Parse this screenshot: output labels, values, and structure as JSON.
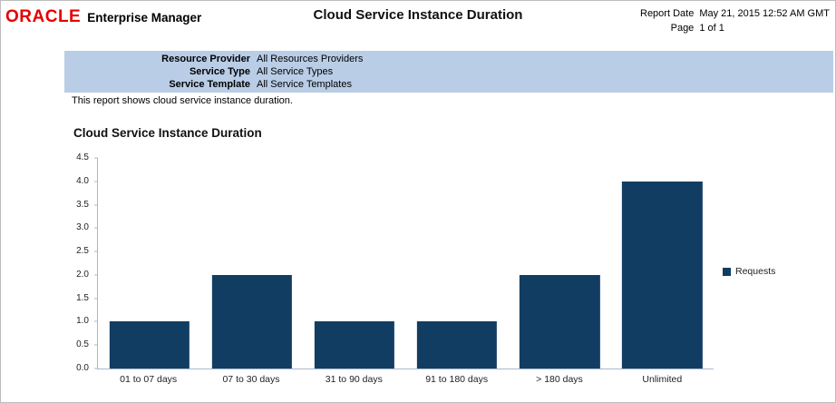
{
  "header": {
    "logo": "ORACLE",
    "product_name": "Enterprise Manager",
    "report_title": "Cloud Service Instance Duration",
    "report_date_label": "Report Date",
    "report_date_value": "May 21, 2015 12:52 AM GMT",
    "page_label": "Page",
    "page_value": "1 of 1"
  },
  "parameters": [
    {
      "label": "Resource Provider",
      "value": "All Resources Providers"
    },
    {
      "label": "Service Type",
      "value": "All Service Types"
    },
    {
      "label": "Service Template",
      "value": "All Service Templates"
    }
  ],
  "description": "This report shows cloud service instance duration.",
  "chart_section_title": "Cloud Service Instance Duration",
  "chart_data": {
    "type": "bar",
    "title": "Cloud Service Instance Duration",
    "categories": [
      "01 to 07 days",
      "07 to 30 days",
      "31 to 90 days",
      "91 to 180 days",
      "> 180 days",
      "Unlimited"
    ],
    "series": [
      {
        "name": "Requests",
        "values": [
          1,
          2,
          1,
          1,
          2,
          4
        ]
      }
    ],
    "xlabel": "",
    "ylabel": "",
    "ylim": [
      0,
      4.5
    ],
    "ytick_step": 0.5,
    "grid": false,
    "legend_position": "right"
  },
  "colors": {
    "bar": "#123d63",
    "param_band": "#b9cde6",
    "oracle_red": "#e60000",
    "axis": "#a8b8cc"
  }
}
